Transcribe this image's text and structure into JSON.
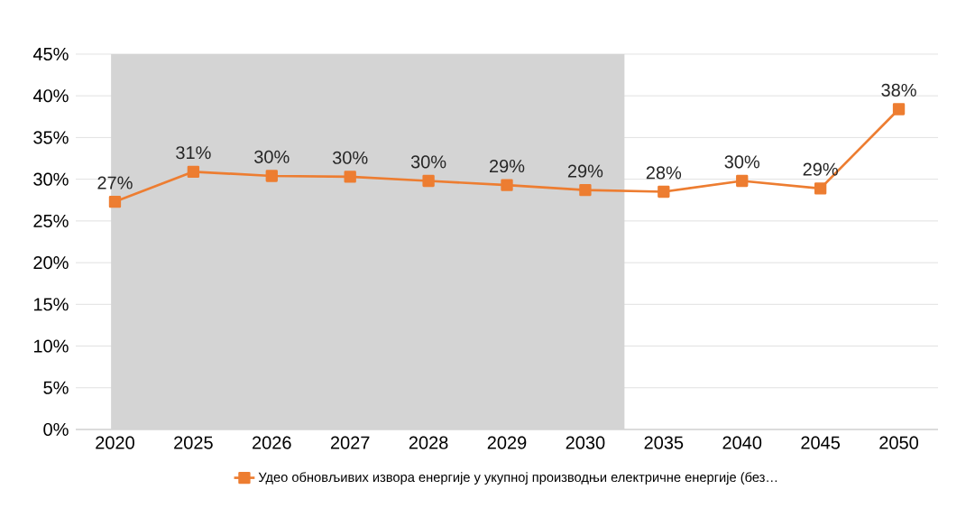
{
  "chart_data": {
    "type": "line",
    "categories": [
      "2020",
      "2025",
      "2026",
      "2027",
      "2028",
      "2029",
      "2030",
      "2035",
      "2040",
      "2045",
      "2050"
    ],
    "series": [
      {
        "name": "Удео обновљивих извора енергије у укупној производњи електричне енергије (без…",
        "color": "#ed7d31",
        "values": [
          27.3,
          30.9,
          30.4,
          30.3,
          29.8,
          29.3,
          28.7,
          28.5,
          29.8,
          28.9,
          38.4
        ],
        "value_labels": [
          "27%",
          "31%",
          "30%",
          "30%",
          "30%",
          "29%",
          "29%",
          "28%",
          "30%",
          "29%",
          "38%"
        ]
      }
    ],
    "ylim": [
      0,
      45
    ],
    "yticks": [
      {
        "value": 0,
        "label": "0%"
      },
      {
        "value": 5,
        "label": "5%"
      },
      {
        "value": 10,
        "label": "10%"
      },
      {
        "value": 15,
        "label": "15%"
      },
      {
        "value": 20,
        "label": "20%"
      },
      {
        "value": 25,
        "label": "25%"
      },
      {
        "value": 30,
        "label": "30%"
      },
      {
        "value": 35,
        "label": "35%"
      },
      {
        "value": 40,
        "label": "40%"
      },
      {
        "value": 45,
        "label": "45%"
      }
    ],
    "bands": [
      {
        "axis": "x",
        "from": "2020",
        "to": "2030",
        "color": "#d4d4d4"
      }
    ],
    "grid": "y",
    "legend": "bottom",
    "marker": "square",
    "line_style": "solid"
  }
}
